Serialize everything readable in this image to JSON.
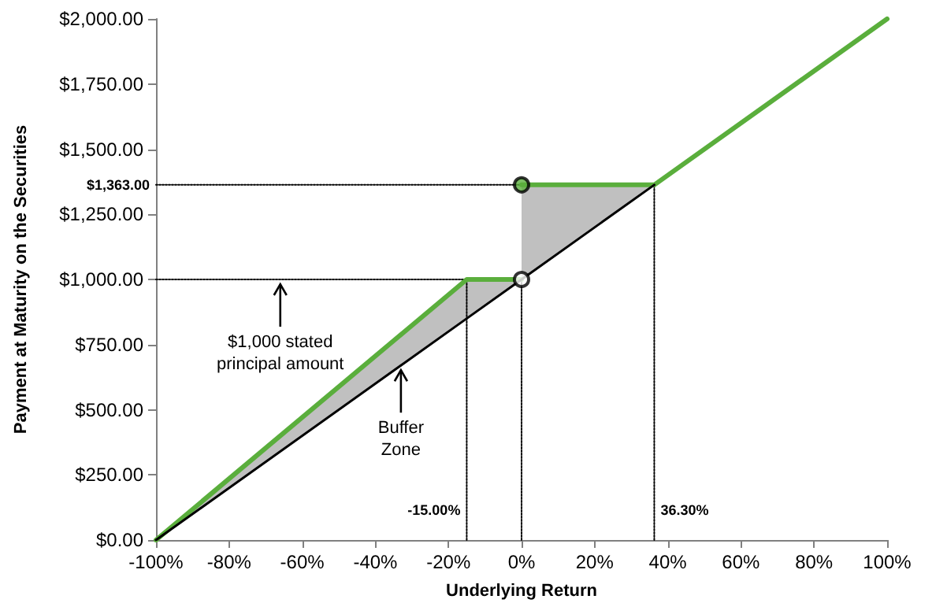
{
  "chart_data": {
    "type": "line",
    "xlabel": "Underlying Return",
    "ylabel": "Payment at Maturity on the Securities",
    "xlim": [
      -100,
      100
    ],
    "ylim": [
      0,
      2000
    ],
    "xticks": [
      {
        "value": -100,
        "label": "-100%"
      },
      {
        "value": -80,
        "label": "-80%"
      },
      {
        "value": -60,
        "label": "-60%"
      },
      {
        "value": -40,
        "label": "-40%"
      },
      {
        "value": -20,
        "label": "-20%"
      },
      {
        "value": 0,
        "label": "0%"
      },
      {
        "value": 20,
        "label": "20%"
      },
      {
        "value": 40,
        "label": "40%"
      },
      {
        "value": 60,
        "label": "60%"
      },
      {
        "value": 80,
        "label": "80%"
      },
      {
        "value": 100,
        "label": "100%"
      }
    ],
    "yticks": [
      {
        "value": 0,
        "label": "$0.00"
      },
      {
        "value": 250,
        "label": "$250.00"
      },
      {
        "value": 500,
        "label": "$500.00"
      },
      {
        "value": 750,
        "label": "$750.00"
      },
      {
        "value": 1000,
        "label": "$1,000.00"
      },
      {
        "value": 1250,
        "label": "$1,250.00"
      },
      {
        "value": 1500,
        "label": "$1,500.00"
      },
      {
        "value": 1750,
        "label": "$1,750.00"
      },
      {
        "value": 2000,
        "label": "$2,000.00"
      }
    ],
    "grid": false,
    "series": [
      {
        "color": "#000000",
        "x": [
          -100,
          -15,
          0,
          0,
          36.3
        ],
        "values": [
          0,
          850,
          1000,
          1000,
          1363
        ],
        "lower": [
          0,
          850,
          1000,
          1000,
          1363
        ],
        "upper": [
          0,
          1000,
          1000,
          1363,
          1363
        ],
        "marker": "none",
        "line_style": "solid"
      },
      {
        "color": "#000000",
        "x": [
          -100,
          0
        ],
        "values": [
          1363,
          1363
        ],
        "marker": "none",
        "line_style": "dotted"
      },
      {
        "color": "#000000",
        "x": [
          -100,
          -15
        ],
        "values": [
          1000,
          1000
        ],
        "marker": "none",
        "line_style": "dotted"
      },
      {
        "color": "#000000",
        "x": [
          -15,
          -15
        ],
        "values": [
          0,
          1000
        ],
        "marker": "none",
        "line_style": "dotted"
      },
      {
        "color": "#000000",
        "x": [
          0,
          0
        ],
        "values": [
          0,
          1000
        ],
        "marker": "none",
        "line_style": "dotted"
      },
      {
        "color": "#000000",
        "x": [
          36.3,
          36.3
        ],
        "values": [
          0,
          1363
        ],
        "marker": "none",
        "line_style": "dotted"
      },
      {
        "color": "#5aae3c",
        "x": [
          -100,
          -15,
          0,
          null,
          0,
          36.3,
          100
        ],
        "values": [
          0,
          1000,
          1000,
          null,
          1363,
          1363,
          2000
        ],
        "marker": "none",
        "line_style": "solid"
      },
      {
        "type": "scatter",
        "color": "#5aae3c",
        "x": [
          0
        ],
        "values": [
          1363
        ],
        "marker": "circle"
      },
      {
        "type": "scatter",
        "color": "#ffffff",
        "x": [
          0
        ],
        "values": [
          1000
        ],
        "marker": "circle"
      }
    ],
    "annotations": [
      {
        "text": "$1,363.00",
        "x": -100,
        "y": 1363
      },
      {
        "text": "$1,000 stated\nprincipal amount",
        "x": -66,
        "y": 1000
      },
      {
        "text": "Buffer\nZone",
        "x": -33,
        "y": 670
      },
      {
        "text": "-15.00%",
        "x": -15,
        "y": 0
      },
      {
        "text": "36.30%",
        "x": 36.3,
        "y": 0
      }
    ]
  }
}
